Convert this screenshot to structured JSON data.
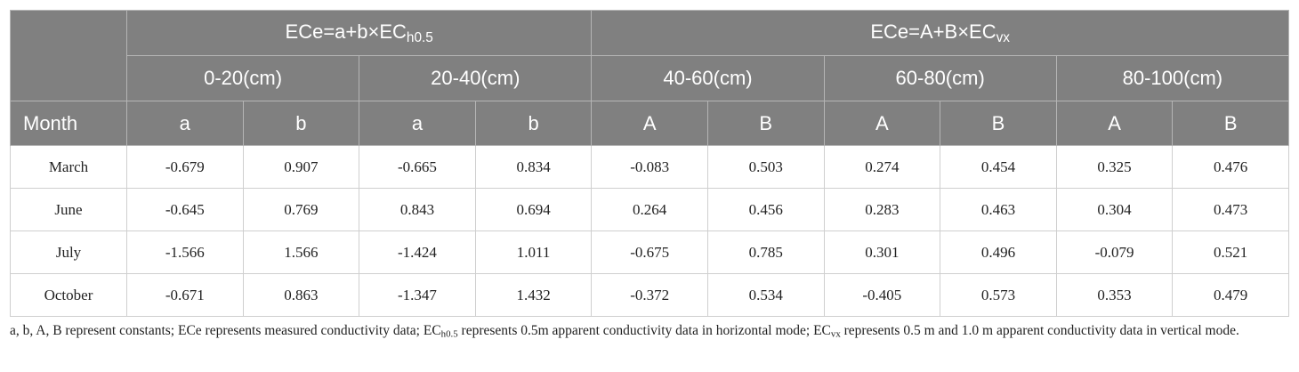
{
  "table": {
    "row_header": "Month",
    "groups": [
      {
        "formula": [
          "ECe=a+b×EC",
          "h0.5"
        ],
        "depths": [
          {
            "label": "0-20(cm)",
            "params": [
              "a",
              "b"
            ]
          },
          {
            "label": "20-40(cm)",
            "params": [
              "a",
              "b"
            ]
          }
        ]
      },
      {
        "formula": [
          "ECe=A+B×EC",
          "vx"
        ],
        "depths": [
          {
            "label": "40-60(cm)",
            "params": [
              "A",
              "B"
            ]
          },
          {
            "label": "60-80(cm)",
            "params": [
              "A",
              "B"
            ]
          },
          {
            "label": "80-100(cm)",
            "params": [
              "A",
              "B"
            ]
          }
        ]
      }
    ],
    "rows": [
      {
        "month": "March",
        "values": [
          "-0.679",
          "0.907",
          "-0.665",
          "0.834",
          "-0.083",
          "0.503",
          "0.274",
          "0.454",
          "0.325",
          "0.476"
        ]
      },
      {
        "month": "June",
        "values": [
          "-0.645",
          "0.769",
          "0.843",
          "0.694",
          "0.264",
          "0.456",
          "0.283",
          "0.463",
          "0.304",
          "0.473"
        ]
      },
      {
        "month": "July",
        "values": [
          "-1.566",
          "1.566",
          "-1.424",
          "1.011",
          "-0.675",
          "0.785",
          "0.301",
          "0.496",
          "-0.079",
          "0.521"
        ]
      },
      {
        "month": "October",
        "values": [
          "-0.671",
          "0.863",
          "-1.347",
          "1.432",
          "-0.372",
          "0.534",
          "-0.405",
          "0.573",
          "0.353",
          "0.479"
        ]
      }
    ]
  },
  "footnote": [
    "a, b, A, B represent constants; ECe represents measured conductivity data; EC",
    "h0.5",
    " represents 0.5m apparent conductivity data in horizontal mode; EC",
    "vx",
    " represents 0.5 m and 1.0 m apparent conductivity data in vertical mode."
  ]
}
